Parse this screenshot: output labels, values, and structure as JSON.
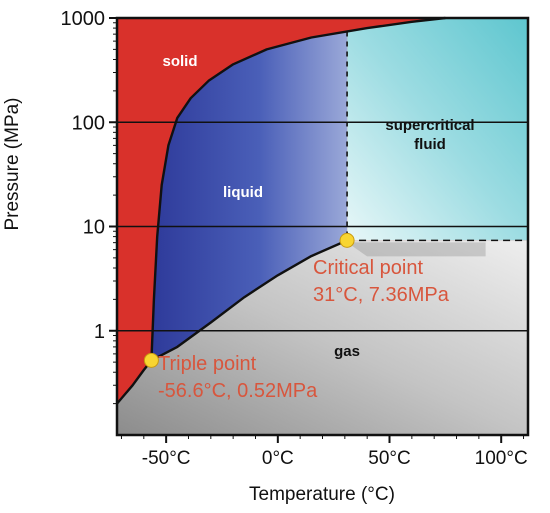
{
  "chart_data": {
    "type": "area",
    "title": "",
    "xlabel": "Temperature (°C)",
    "ylabel": "Pressure (MPa)",
    "xlim": [
      -72,
      112
    ],
    "ylim": [
      0.1,
      1000
    ],
    "yscale": "log",
    "x_ticks": [
      -50,
      0,
      50,
      100
    ],
    "x_tick_labels": [
      "-50°C",
      "0°C",
      "50°C",
      "100°C"
    ],
    "y_ticks": [
      1,
      10,
      100,
      1000
    ],
    "y_tick_labels": [
      "1",
      "10",
      "100",
      "1000"
    ],
    "grid": "horizontal",
    "regions": [
      {
        "label": "solid",
        "color": "#d9312b"
      },
      {
        "label": "liquid",
        "color": "#3c4fae"
      },
      {
        "label": "supercritical fluid",
        "color": "#8fd8df"
      },
      {
        "label": "gas",
        "color": "#bcbcbc"
      }
    ],
    "boundaries": {
      "sublimation": {
        "x": [
          -72,
          -65,
          -60,
          -56.6
        ],
        "y": [
          0.2,
          0.3,
          0.42,
          0.52
        ]
      },
      "melting": {
        "x": [
          -56.6,
          -55.5,
          -54,
          -52,
          -49,
          -45,
          -39,
          -31,
          -20,
          -5,
          15,
          40,
          60,
          75
        ],
        "y": [
          0.52,
          2,
          8,
          25,
          60,
          110,
          170,
          250,
          360,
          500,
          650,
          800,
          920,
          1000
        ]
      },
      "vaporization": {
        "x": [
          -56.6,
          -45,
          -30,
          -15,
          0,
          15,
          31
        ],
        "y": [
          0.52,
          0.7,
          1.2,
          2.1,
          3.4,
          5.2,
          7.36
        ]
      }
    },
    "critical_isotherm_x": 31,
    "critical_isobar_y": 7.36,
    "points": [
      {
        "name": "Triple point",
        "x": -56.6,
        "y": 0.52,
        "value_label": "-56.6°C, 0.52MPa",
        "color": "#f8d531"
      },
      {
        "name": "Critical point",
        "x": 31,
        "y": 7.36,
        "value_label": "31°C, 7.36MPa",
        "color": "#f8d531"
      }
    ],
    "annotation_color": "#d8563d"
  }
}
